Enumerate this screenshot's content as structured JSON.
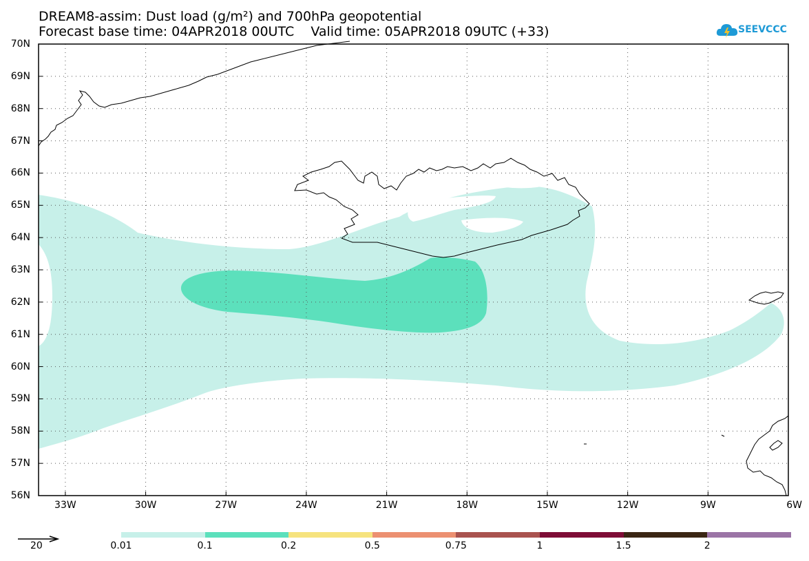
{
  "header": {
    "title_line1": "DREAM8-assim: Dust load (g/m²) and 700hPa geopotential",
    "title_line2": "Forecast base time: 04APR2018 00UTC    Valid time: 05APR2018 09UTC (+33)",
    "logo_text": "SEEVCCC",
    "logo_color": "#1e9ad6"
  },
  "map": {
    "lon_range": [
      -34,
      -6
    ],
    "lat_range": [
      56,
      70
    ],
    "lat_labels": [
      "70N",
      "69N",
      "68N",
      "67N",
      "66N",
      "65N",
      "64N",
      "63N",
      "62N",
      "61N",
      "60N",
      "59N",
      "58N",
      "57N",
      "56N"
    ],
    "lon_labels": [
      "33W",
      "30W",
      "27W",
      "24W",
      "21W",
      "18W",
      "15W",
      "12W",
      "9W",
      "6W"
    ],
    "gridlines": true,
    "land_fill": "none",
    "coastline_color": "#000000"
  },
  "legend": {
    "vector_reference": "20",
    "colorbar": [
      {
        "label": "0.01",
        "color": "#c7f0e9"
      },
      {
        "label": "0.1",
        "color": "#5ce0bc"
      },
      {
        "label": "0.2",
        "color": "#f6e37e"
      },
      {
        "label": "0.5",
        "color": "#ec9071"
      },
      {
        "label": "0.75",
        "color": "#a9534f"
      },
      {
        "label": "1",
        "color": "#7e0d36"
      },
      {
        "label": "1.5",
        "color": "#3a2614"
      },
      {
        "label": "2",
        "color": "#9b74a6"
      }
    ]
  }
}
